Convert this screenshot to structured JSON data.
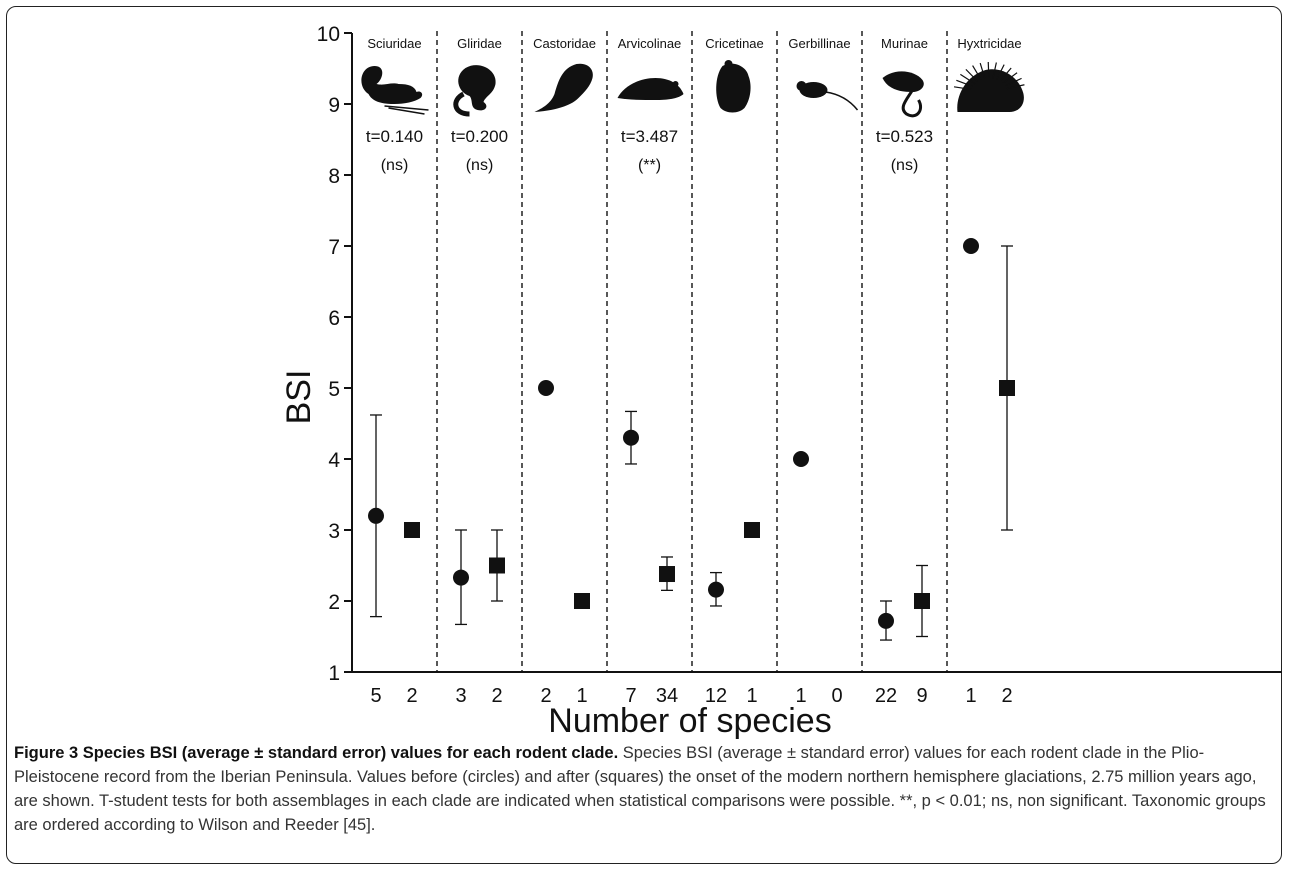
{
  "chart_data": {
    "type": "scatter",
    "ylabel": "BSI",
    "xlabel": "Number of species",
    "ylim": [
      1,
      10
    ],
    "yticks": [
      1,
      2,
      3,
      4,
      5,
      6,
      7,
      8,
      9,
      10
    ],
    "legend": "none",
    "marker_legend": [
      {
        "marker": "circle",
        "meaning": "before"
      },
      {
        "marker": "square",
        "meaning": "after"
      }
    ],
    "clades": [
      {
        "name": "Sciuridae",
        "icon": "squirrel-icon",
        "test": "t=0.140",
        "sig": "(ns)",
        "before": {
          "n": "5",
          "mean": 3.2,
          "err_low": 1.78,
          "err_high": 4.62
        },
        "after": {
          "n": "2",
          "mean": 3.0
        }
      },
      {
        "name": "Gliridae",
        "icon": "dormouse-icon",
        "test": "t=0.200",
        "sig": "(ns)",
        "before": {
          "n": "3",
          "mean": 2.33,
          "err_low": 1.67,
          "err_high": 3.0
        },
        "after": {
          "n": "2",
          "mean": 2.5,
          "err_low": 2.0,
          "err_high": 3.0
        }
      },
      {
        "name": "Castoridae",
        "icon": "beaver-icon",
        "test": "",
        "sig": "",
        "before": {
          "n": "2",
          "mean": 5.0
        },
        "after": {
          "n": "1",
          "mean": 2.0
        }
      },
      {
        "name": "Arvicolinae",
        "icon": "vole-icon",
        "test": "t=3.487",
        "sig": "(**)",
        "before": {
          "n": "7",
          "mean": 4.3,
          "err_low": 3.93,
          "err_high": 4.67
        },
        "after": {
          "n": "34",
          "mean": 2.38,
          "err_low": 2.15,
          "err_high": 2.62
        }
      },
      {
        "name": "Cricetinae",
        "icon": "hamster-icon",
        "test": "",
        "sig": "",
        "before": {
          "n": "12",
          "mean": 2.16,
          "err_low": 1.93,
          "err_high": 2.4
        },
        "after": {
          "n": "1",
          "mean": 3.0
        }
      },
      {
        "name": "Gerbillinae",
        "icon": "gerbil-icon",
        "test": "",
        "sig": "",
        "before": {
          "n": "1",
          "mean": 4.0
        },
        "after": {
          "n": "0",
          "mean": null
        }
      },
      {
        "name": "Murinae",
        "icon": "mouse-icon",
        "test": "t=0.523",
        "sig": "(ns)",
        "before": {
          "n": "22",
          "mean": 1.72,
          "err_low": 1.45,
          "err_high": 2.0
        },
        "after": {
          "n": "9",
          "mean": 2.0,
          "err_low": 1.5,
          "err_high": 2.5
        }
      },
      {
        "name": "Hyxtricidae",
        "icon": "porcupine-icon",
        "test": "",
        "sig": "",
        "before": {
          "n": "1",
          "mean": 7.0
        },
        "after": {
          "n": "2",
          "mean": 5.0,
          "err_low": 3.0,
          "err_high": 7.0
        }
      }
    ]
  },
  "caption": {
    "title": "Figure 3 Species BSI (average ± standard error) values for each rodent clade.",
    "body": " Species BSI (average ± standard error) values for each rodent clade in the Plio-Pleistocene record from the Iberian Peninsula. Values before (circles) and after (squares) the onset of the modern northern hemisphere glaciations, 2.75 million years ago, are shown. T-student tests for both assemblages in each clade are indicated when statistical comparisons were possible. **, p < 0.01; ns, non significant. Taxonomic groups are ordered according to Wilson and Reeder [45]."
  },
  "colors": {
    "ink": "#111111",
    "caption_text": "#333333",
    "frame": "#222222"
  }
}
